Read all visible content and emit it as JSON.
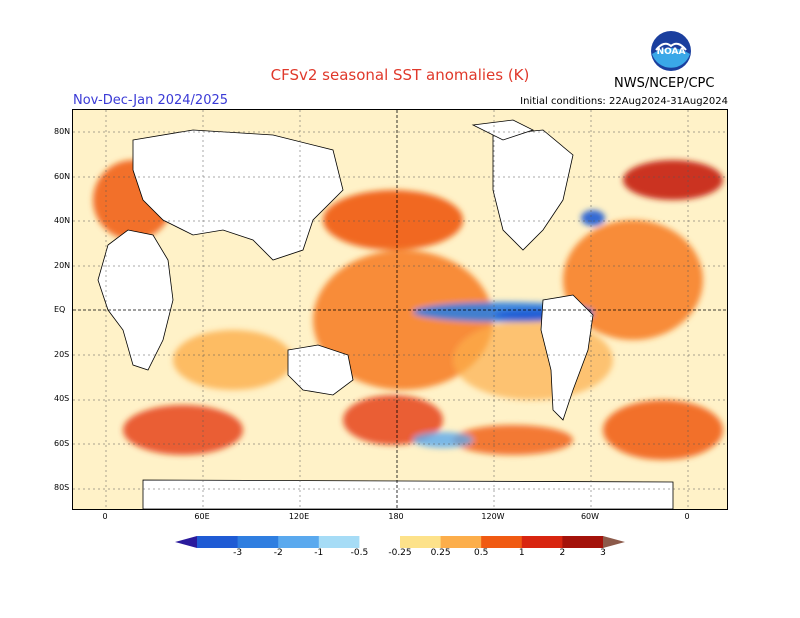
{
  "title": "CFSv2 seasonal SST anomalies (K)",
  "season": "Nov-Dec-Jan 2024/2025",
  "initial_conditions": "Initial conditions: 22Aug2024-31Aug2024",
  "agency": "NWS/NCEP/CPC",
  "logo_text": "NOAA",
  "lat_labels": [
    "80N",
    "60N",
    "40N",
    "20N",
    "EQ",
    "20S",
    "40S",
    "60S",
    "80S"
  ],
  "lon_labels": [
    "0",
    "60E",
    "120E",
    "180",
    "120W",
    "60W",
    "0"
  ],
  "colorbar": {
    "labels": [
      "-3",
      "-2",
      "-1",
      "-0.5",
      "-0.25",
      "0.25",
      "0.5",
      "1",
      "2",
      "3"
    ],
    "colors": [
      "#2a1a9c",
      "#1f5bd4",
      "#2f7ee0",
      "#5aa9ee",
      "#a6dcf6",
      "#ffffff",
      "#fde28a",
      "#fcae4b",
      "#f05a12",
      "#d8250f",
      "#a4120a",
      "#8c5a4a"
    ]
  },
  "colors": {
    "title": "#e0392b",
    "season": "#3a3ad6"
  }
}
